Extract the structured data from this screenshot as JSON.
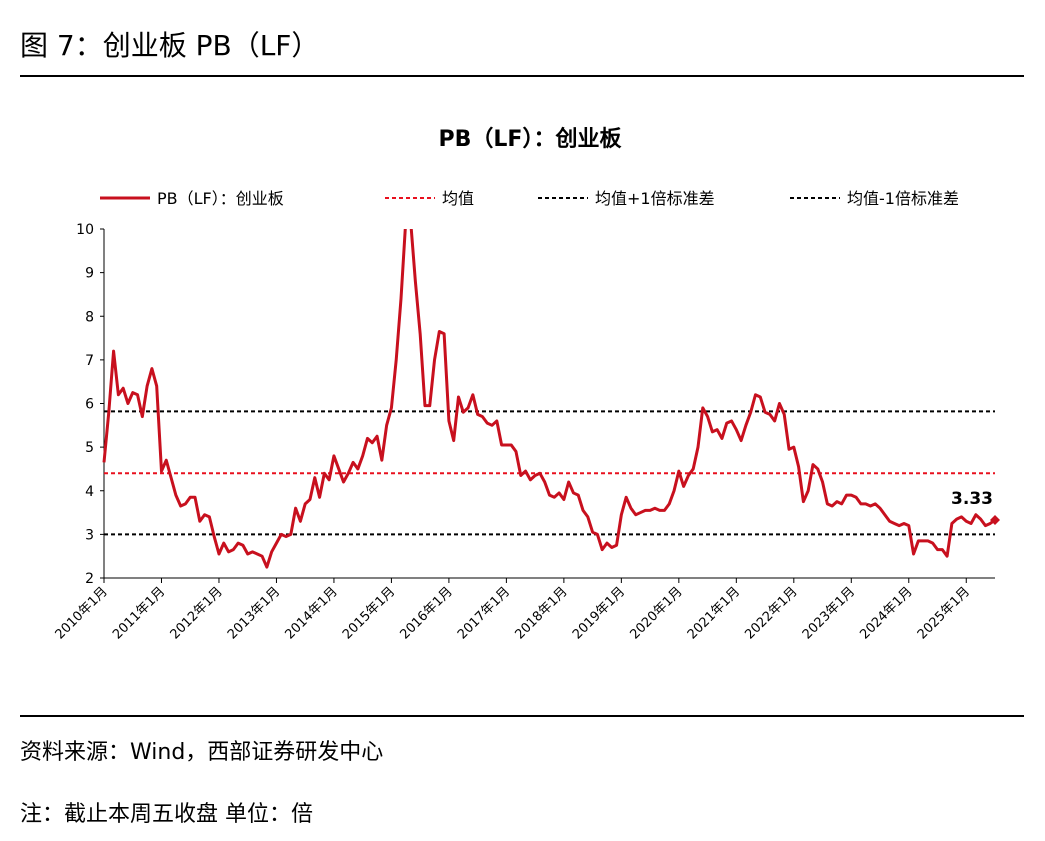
{
  "header": {
    "title": "图 7：创业板 PB（LF）"
  },
  "chart_data": {
    "type": "line",
    "title": "PB（LF）：创业板",
    "categories": [
      "2010年1月",
      null,
      null,
      null,
      null,
      null,
      null,
      null,
      null,
      null,
      null,
      null,
      "2011年1月",
      null,
      null,
      null,
      null,
      null,
      null,
      null,
      null,
      null,
      null,
      null,
      "2012年1月",
      null,
      null,
      null,
      null,
      null,
      null,
      null,
      null,
      null,
      null,
      null,
      "2013年1月",
      null,
      null,
      null,
      null,
      null,
      null,
      null,
      null,
      null,
      null,
      null,
      "2014年1月",
      null,
      null,
      null,
      null,
      null,
      null,
      null,
      null,
      null,
      null,
      null,
      "2015年1月",
      null,
      null,
      null,
      null,
      null,
      null,
      null,
      null,
      null,
      null,
      null,
      "2016年1月",
      null,
      null,
      null,
      null,
      null,
      null,
      null,
      null,
      null,
      null,
      null,
      "2017年1月",
      null,
      null,
      null,
      null,
      null,
      null,
      null,
      null,
      null,
      null,
      null,
      "2018年1月",
      null,
      null,
      null,
      null,
      null,
      null,
      null,
      null,
      null,
      null,
      null,
      "2019年1月",
      null,
      null,
      null,
      null,
      null,
      null,
      null,
      null,
      null,
      null,
      null,
      "2020年1月",
      null,
      null,
      null,
      null,
      null,
      null,
      null,
      null,
      null,
      null,
      null,
      "2021年1月",
      null,
      null,
      null,
      null,
      null,
      null,
      null,
      null,
      null,
      null,
      null,
      "2022年1月",
      null,
      null,
      null,
      null,
      null,
      null,
      null,
      null,
      null,
      null,
      null,
      "2023年1月",
      null,
      null,
      null,
      null,
      null,
      null,
      null,
      null,
      null,
      null,
      null,
      "2024年1月",
      null,
      null,
      null,
      null,
      null,
      null,
      null,
      null,
      null,
      null,
      null,
      "2025年1月",
      null,
      null,
      null,
      null,
      null,
      null
    ],
    "series": [
      {
        "name": "PB（LF）：创业板",
        "color": "#c8101e",
        "values": [
          4.65,
          5.8,
          7.2,
          6.2,
          6.35,
          6.0,
          6.25,
          6.2,
          5.7,
          6.4,
          6.8,
          6.4,
          4.45,
          4.7,
          4.3,
          3.9,
          3.65,
          3.7,
          3.85,
          3.85,
          3.3,
          3.45,
          3.4,
          2.95,
          2.55,
          2.8,
          2.6,
          2.65,
          2.8,
          2.75,
          2.55,
          2.6,
          2.55,
          2.5,
          2.25,
          2.6,
          2.8,
          3.0,
          2.95,
          3.0,
          3.6,
          3.3,
          3.7,
          3.8,
          4.3,
          3.85,
          4.4,
          4.25,
          4.8,
          4.5,
          4.2,
          4.4,
          4.65,
          4.5,
          4.8,
          5.2,
          5.1,
          5.25,
          4.7,
          5.5,
          5.9,
          7.0,
          8.4,
          10.2,
          10.2,
          8.8,
          7.6,
          5.95,
          5.95,
          7.0,
          7.65,
          7.6,
          5.6,
          5.15,
          6.15,
          5.8,
          5.9,
          6.2,
          5.75,
          5.7,
          5.55,
          5.5,
          5.6,
          5.05,
          5.05,
          5.05,
          4.9,
          4.35,
          4.45,
          4.25,
          4.35,
          4.4,
          4.2,
          3.9,
          3.85,
          3.95,
          3.8,
          4.2,
          3.95,
          3.9,
          3.55,
          3.4,
          3.05,
          3.0,
          2.65,
          2.8,
          2.7,
          2.75,
          3.45,
          3.85,
          3.6,
          3.45,
          3.5,
          3.55,
          3.55,
          3.6,
          3.55,
          3.55,
          3.7,
          4.0,
          4.45,
          4.1,
          4.35,
          4.5,
          5.0,
          5.9,
          5.7,
          5.35,
          5.4,
          5.2,
          5.55,
          5.6,
          5.4,
          5.15,
          5.5,
          5.8,
          6.2,
          6.15,
          5.8,
          5.75,
          5.6,
          6.0,
          5.75,
          4.95,
          5.0,
          4.55,
          3.75,
          4.0,
          4.6,
          4.5,
          4.2,
          3.7,
          3.65,
          3.75,
          3.7,
          3.9,
          3.9,
          3.85,
          3.7,
          3.7,
          3.65,
          3.7,
          3.6,
          3.45,
          3.3,
          3.25,
          3.2,
          3.25,
          3.2,
          2.55,
          2.85,
          2.85,
          2.85,
          2.8,
          2.65,
          2.65,
          2.5,
          3.25,
          3.35,
          3.4,
          3.3,
          3.25,
          3.45,
          3.35,
          3.2,
          3.25,
          3.33
        ]
      }
    ],
    "reference_lines": [
      {
        "name": "均值",
        "value": 4.4,
        "color": "#e8101e"
      },
      {
        "name": "均值+1倍标准差",
        "value": 5.82,
        "color": "#000000"
      },
      {
        "name": "均值-1倍标准差",
        "value": 3.0,
        "color": "#000000"
      }
    ],
    "ylim": [
      2,
      10
    ],
    "yticks": [
      2,
      3,
      4,
      5,
      6,
      7,
      8,
      9,
      10
    ]
  },
  "footer": {
    "source": "资料来源：Wind，西部证券研发中心",
    "note": "注：截止本周五收盘 单位：倍"
  }
}
